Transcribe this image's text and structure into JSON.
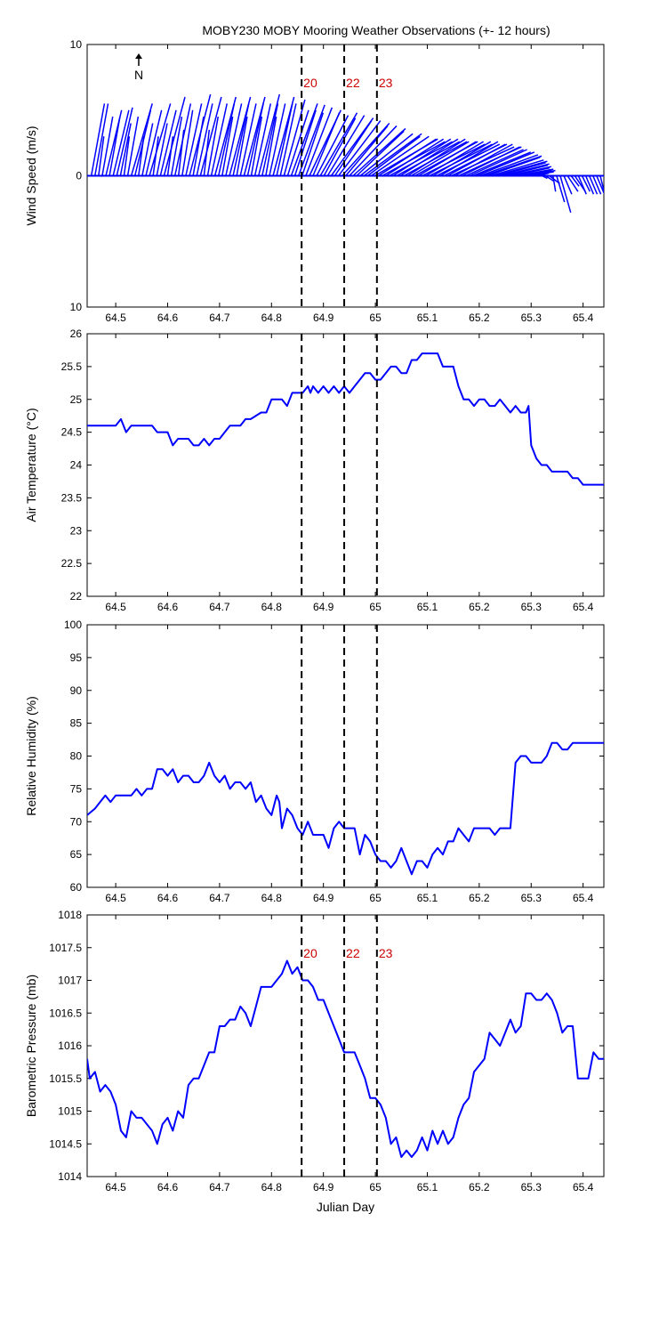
{
  "figure": {
    "title": "MOBY230 MOBY Mooring Weather Observations (+- 12 hours)",
    "line_color": "#0000ff",
    "marker_color": "#cc0000",
    "north_label": "N",
    "event_markers": [
      {
        "x": 64.858,
        "label": "20"
      },
      {
        "x": 64.94,
        "label": "22"
      },
      {
        "x": 65.003,
        "label": "23"
      }
    ]
  },
  "chart_data": [
    {
      "type": "quiver",
      "title": "",
      "xlabel": "",
      "ylabel": "Wind Speed (m/s)",
      "xlim": [
        64.445,
        65.44
      ],
      "ylim": [
        -10,
        10
      ],
      "xticks": [
        64.5,
        64.6,
        64.7,
        64.8,
        64.9,
        65,
        65.1,
        65.2,
        65.3,
        65.4
      ],
      "xtick_labels": [
        "64.5",
        "64.6",
        "64.7",
        "64.8",
        "64.9",
        "65",
        "65.1",
        "65.2",
        "65.3",
        "65.4"
      ],
      "yticks": [
        -10,
        0,
        10
      ],
      "ytick_labels": [
        "10",
        "0",
        "10"
      ],
      "show_markers": true,
      "show_marker_labels": true,
      "x": [
        64.453,
        64.46,
        64.467,
        64.474,
        64.481,
        64.488,
        64.495,
        64.502,
        64.509,
        64.516,
        64.523,
        64.53,
        64.537,
        64.544,
        64.551,
        64.558,
        64.565,
        64.572,
        64.579,
        64.586,
        64.593,
        64.6,
        64.607,
        64.614,
        64.621,
        64.628,
        64.635,
        64.642,
        64.649,
        64.656,
        64.663,
        64.67,
        64.677,
        64.684,
        64.691,
        64.698,
        64.705,
        64.712,
        64.719,
        64.726,
        64.733,
        64.74,
        64.747,
        64.754,
        64.761,
        64.768,
        64.775,
        64.782,
        64.789,
        64.796,
        64.803,
        64.81,
        64.817,
        64.824,
        64.831,
        64.838,
        64.845,
        64.852,
        64.859,
        64.866,
        64.873,
        64.88,
        64.887,
        64.894,
        64.901,
        64.908,
        64.915,
        64.922,
        64.929,
        64.936,
        64.943,
        64.95,
        64.957,
        64.964,
        64.971,
        64.978,
        64.985,
        64.992,
        64.999,
        65.006,
        65.013,
        65.02,
        65.027,
        65.034,
        65.041,
        65.048,
        65.055,
        65.062,
        65.069,
        65.076,
        65.083,
        65.09,
        65.097,
        65.104,
        65.111,
        65.118,
        65.125,
        65.132,
        65.139,
        65.146,
        65.153,
        65.16,
        65.167,
        65.174,
        65.181,
        65.188,
        65.195,
        65.202,
        65.209,
        65.216,
        65.223,
        65.23,
        65.237,
        65.244,
        65.251,
        65.258,
        65.265,
        65.272,
        65.279,
        65.286,
        65.293,
        65.3,
        65.307,
        65.314,
        65.321,
        65.328,
        65.335,
        65.342,
        65.349,
        65.356,
        65.363,
        65.37,
        65.377,
        65.384,
        65.391,
        65.398,
        65.405,
        65.412,
        65.419,
        65.426,
        65.433
      ],
      "u": [
        1.0,
        1.0,
        0.4,
        0.8,
        1.2,
        0.8,
        1.2,
        1.2,
        0.8,
        0.4,
        0.8,
        1.6,
        1.2,
        0.4,
        0.8,
        1.2,
        1.6,
        0.4,
        0.8,
        1.2,
        1.6,
        0.4,
        0.8,
        1.2,
        0.4,
        0.8,
        1.2,
        1.6,
        0.8,
        1.2,
        1.6,
        0.4,
        0.8,
        1.2,
        1.6,
        1.2,
        0.8,
        1.2,
        1.6,
        1.2,
        0.8,
        1.2,
        1.6,
        1.2,
        0.8,
        1.2,
        1.6,
        1.2,
        0.8,
        1.2,
        1.6,
        1.2,
        1.2,
        1.6,
        1.6,
        2.0,
        1.6,
        2.0,
        1.6,
        2.0,
        2.4,
        2.0,
        2.4,
        2.8,
        2.4,
        2.8,
        3.2,
        2.8,
        3.2,
        3.6,
        3.2,
        3.6,
        4.0,
        3.6,
        4.0,
        4.4,
        4.0,
        4.4,
        4.8,
        4.4,
        4.8,
        4.4,
        4.8,
        4.4,
        4.8,
        4.4,
        4.8,
        4.4,
        4.4,
        4.8,
        4.4,
        4.8,
        4.4,
        4.8,
        4.4,
        4.8,
        4.4,
        4.8,
        4.4,
        4.8,
        4.4,
        4.8,
        4.4,
        4.4,
        4.4,
        4.4,
        4.4,
        4.4,
        4.4,
        4.0,
        4.0,
        4.0,
        3.6,
        3.6,
        3.2,
        3.2,
        2.8,
        2.8,
        2.4,
        2.4,
        2.0,
        1.6,
        1.2,
        0.8,
        0.4,
        0.6,
        0.8,
        0.2,
        0.6,
        0.8,
        0.6,
        0.8,
        0.6,
        0.8,
        0.6,
        0.6,
        0.6,
        0.6,
        0.6,
        0.6,
        0.4
      ],
      "v": [
        5.5,
        5.5,
        3.0,
        4.5,
        5.0,
        4.5,
        5.0,
        5.2,
        4.0,
        3.0,
        4.5,
        5.5,
        5.0,
        3.0,
        4.0,
        5.0,
        5.5,
        3.0,
        4.0,
        5.0,
        6.0,
        3.0,
        4.5,
        5.5,
        3.5,
        5.0,
        5.5,
        6.2,
        4.5,
        5.5,
        6.0,
        3.5,
        4.5,
        5.5,
        6.0,
        5.5,
        4.5,
        5.5,
        6.0,
        5.5,
        4.5,
        5.5,
        6.0,
        5.5,
        4.5,
        5.5,
        6.2,
        5.5,
        4.5,
        5.5,
        6.0,
        5.5,
        5.5,
        5.8,
        5.0,
        5.5,
        5.0,
        5.4,
        4.8,
        5.2,
        5.0,
        4.8,
        4.6,
        4.8,
        4.4,
        4.6,
        4.4,
        4.2,
        4.2,
        4.0,
        3.8,
        3.8,
        3.6,
        3.4,
        3.2,
        3.2,
        3.0,
        3.0,
        2.8,
        2.8,
        2.6,
        2.8,
        2.6,
        2.8,
        2.6,
        2.8,
        2.6,
        2.8,
        2.6,
        2.6,
        2.6,
        2.4,
        2.6,
        2.4,
        2.6,
        2.4,
        2.6,
        2.4,
        2.4,
        2.2,
        2.4,
        2.2,
        2.2,
        2.0,
        2.0,
        1.8,
        1.8,
        1.6,
        1.5,
        1.4,
        1.2,
        1.1,
        1.0,
        0.9,
        0.8,
        0.7,
        0.6,
        0.5,
        0.4,
        0.4,
        0.3,
        0.3,
        0.3,
        0.2,
        -0.2,
        -0.4,
        -0.6,
        -1.2,
        -2.0,
        -2.8,
        -1.4,
        -1.2,
        -0.8,
        -1.2,
        -1.4,
        -1.2,
        -1.4,
        -1.4,
        -1.4,
        -1.4,
        -1.6,
        -1.4,
        -1.8
      ]
    },
    {
      "type": "line",
      "title": "",
      "xlabel": "",
      "ylabel": "Air Temperature (°C)",
      "xlim": [
        64.445,
        65.44
      ],
      "ylim": [
        22,
        26
      ],
      "xticks": [
        64.5,
        64.6,
        64.7,
        64.8,
        64.9,
        65,
        65.1,
        65.2,
        65.3,
        65.4
      ],
      "xtick_labels": [
        "64.5",
        "64.6",
        "64.7",
        "64.8",
        "64.9",
        "65",
        "65.1",
        "65.2",
        "65.3",
        "65.4"
      ],
      "yticks": [
        22,
        22.5,
        23,
        23.5,
        24,
        24.5,
        25,
        25.5,
        26
      ],
      "ytick_labels": [
        "22",
        "22.5",
        "23",
        "23.5",
        "24",
        "24.5",
        "25",
        "25.5",
        "26"
      ],
      "show_markers": true,
      "show_marker_labels": false,
      "x": [
        64.445,
        64.46,
        64.48,
        64.5,
        64.51,
        64.52,
        64.53,
        64.55,
        64.57,
        64.58,
        64.6,
        64.61,
        64.62,
        64.64,
        64.65,
        64.66,
        64.67,
        64.68,
        64.69,
        64.7,
        64.71,
        64.72,
        64.74,
        64.75,
        64.76,
        64.78,
        64.79,
        64.8,
        64.81,
        64.82,
        64.83,
        64.84,
        64.85,
        64.86,
        64.87,
        64.875,
        64.88,
        64.89,
        64.9,
        64.91,
        64.92,
        64.93,
        64.94,
        64.95,
        64.96,
        64.97,
        64.98,
        64.99,
        65.0,
        65.01,
        65.02,
        65.03,
        65.04,
        65.05,
        65.06,
        65.07,
        65.08,
        65.09,
        65.1,
        65.11,
        65.12,
        65.13,
        65.14,
        65.15,
        65.16,
        65.17,
        65.18,
        65.19,
        65.2,
        65.21,
        65.22,
        65.23,
        65.24,
        65.25,
        65.26,
        65.27,
        65.28,
        65.29,
        65.295,
        65.3,
        65.31,
        65.32,
        65.33,
        65.34,
        65.35,
        65.36,
        65.37,
        65.38,
        65.39,
        65.4,
        65.41,
        65.42,
        65.43,
        65.44
      ],
      "y": [
        24.6,
        24.6,
        24.6,
        24.6,
        24.7,
        24.5,
        24.6,
        24.6,
        24.6,
        24.5,
        24.5,
        24.3,
        24.4,
        24.4,
        24.3,
        24.3,
        24.4,
        24.3,
        24.4,
        24.4,
        24.5,
        24.6,
        24.6,
        24.7,
        24.7,
        24.8,
        24.8,
        25.0,
        25.0,
        25.0,
        24.9,
        25.1,
        25.1,
        25.1,
        25.2,
        25.1,
        25.2,
        25.1,
        25.2,
        25.1,
        25.2,
        25.1,
        25.2,
        25.1,
        25.2,
        25.3,
        25.4,
        25.4,
        25.3,
        25.3,
        25.4,
        25.5,
        25.5,
        25.4,
        25.4,
        25.6,
        25.6,
        25.7,
        25.7,
        25.7,
        25.7,
        25.5,
        25.5,
        25.5,
        25.2,
        25.0,
        25.0,
        24.9,
        25.0,
        25.0,
        24.9,
        24.9,
        25.0,
        24.9,
        24.8,
        24.9,
        24.8,
        24.8,
        24.9,
        24.3,
        24.1,
        24.0,
        24.0,
        23.9,
        23.9,
        23.9,
        23.9,
        23.8,
        23.8,
        23.7,
        23.7,
        23.7,
        23.7,
        23.7
      ]
    },
    {
      "type": "line",
      "title": "",
      "xlabel": "",
      "ylabel": "Relative Humidity (%)",
      "xlim": [
        64.445,
        65.44
      ],
      "ylim": [
        60,
        100
      ],
      "xticks": [
        64.5,
        64.6,
        64.7,
        64.8,
        64.9,
        65,
        65.1,
        65.2,
        65.3,
        65.4
      ],
      "xtick_labels": [
        "64.5",
        "64.6",
        "64.7",
        "64.8",
        "64.9",
        "65",
        "65.1",
        "65.2",
        "65.3",
        "65.4"
      ],
      "yticks": [
        60,
        65,
        70,
        75,
        80,
        85,
        90,
        95,
        100
      ],
      "ytick_labels": [
        "60",
        "65",
        "70",
        "75",
        "80",
        "85",
        "90",
        "95",
        "100"
      ],
      "show_markers": true,
      "show_marker_labels": false,
      "x": [
        64.445,
        64.46,
        64.47,
        64.48,
        64.49,
        64.5,
        64.51,
        64.52,
        64.53,
        64.54,
        64.55,
        64.56,
        64.57,
        64.58,
        64.59,
        64.6,
        64.61,
        64.62,
        64.63,
        64.64,
        64.65,
        64.66,
        64.67,
        64.68,
        64.69,
        64.7,
        64.71,
        64.72,
        64.73,
        64.74,
        64.75,
        64.76,
        64.77,
        64.78,
        64.79,
        64.8,
        64.81,
        64.815,
        64.82,
        64.83,
        64.84,
        64.85,
        64.86,
        64.87,
        64.88,
        64.89,
        64.9,
        64.91,
        64.92,
        64.93,
        64.94,
        64.95,
        64.96,
        64.97,
        64.98,
        64.99,
        65.0,
        65.01,
        65.02,
        65.03,
        65.04,
        65.05,
        65.06,
        65.07,
        65.08,
        65.09,
        65.1,
        65.11,
        65.12,
        65.13,
        65.14,
        65.15,
        65.16,
        65.17,
        65.18,
        65.19,
        65.2,
        65.21,
        65.22,
        65.23,
        65.24,
        65.25,
        65.26,
        65.27,
        65.28,
        65.29,
        65.3,
        65.31,
        65.32,
        65.33,
        65.34,
        65.35,
        65.36,
        65.37,
        65.38,
        65.39,
        65.4,
        65.41,
        65.42,
        65.43,
        65.44
      ],
      "y": [
        71,
        72,
        73,
        74,
        73,
        74,
        74,
        74,
        74,
        75,
        74,
        75,
        75,
        78,
        78,
        77,
        78,
        76,
        77,
        77,
        76,
        76,
        77,
        79,
        77,
        76,
        77,
        75,
        76,
        76,
        75,
        76,
        73,
        74,
        72,
        71,
        74,
        73,
        69,
        72,
        71,
        69,
        68,
        70,
        68,
        68,
        68,
        66,
        69,
        70,
        69,
        69,
        69,
        65,
        68,
        67,
        65,
        64,
        64,
        63,
        64,
        66,
        64,
        62,
        64,
        64,
        63,
        65,
        66,
        65,
        67,
        67,
        69,
        68,
        67,
        69,
        69,
        69,
        69,
        68,
        69,
        69,
        69,
        79,
        80,
        80,
        79,
        79,
        79,
        80,
        82,
        82,
        81,
        81,
        82,
        82,
        82,
        82,
        82,
        82,
        82
      ],
      "x_note": ""
    },
    {
      "type": "line",
      "title": "",
      "xlabel": "Julian Day",
      "ylabel": "Barometric Pressure (mb)",
      "xlim": [
        64.445,
        65.44
      ],
      "ylim": [
        1014,
        1018
      ],
      "xticks": [
        64.5,
        64.6,
        64.7,
        64.8,
        64.9,
        65,
        65.1,
        65.2,
        65.3,
        65.4
      ],
      "xtick_labels": [
        "64.5",
        "64.6",
        "64.7",
        "64.8",
        "64.9",
        "65",
        "65.1",
        "65.2",
        "65.3",
        "65.4"
      ],
      "yticks": [
        1014,
        1014.5,
        1015,
        1015.5,
        1016,
        1016.5,
        1017,
        1017.5,
        1018
      ],
      "ytick_labels": [
        "1014",
        "1014.5",
        "1015",
        "1015.5",
        "1016",
        "1016.5",
        "1017",
        "1017.5",
        "1018"
      ],
      "show_markers": true,
      "show_marker_labels": true,
      "x": [
        64.445,
        64.45,
        64.46,
        64.47,
        64.48,
        64.49,
        64.5,
        64.51,
        64.52,
        64.53,
        64.54,
        64.55,
        64.56,
        64.57,
        64.58,
        64.59,
        64.6,
        64.61,
        64.62,
        64.63,
        64.64,
        64.65,
        64.66,
        64.67,
        64.68,
        64.69,
        64.7,
        64.71,
        64.72,
        64.73,
        64.74,
        64.75,
        64.76,
        64.77,
        64.78,
        64.79,
        64.8,
        64.81,
        64.82,
        64.83,
        64.84,
        64.85,
        64.86,
        64.87,
        64.88,
        64.89,
        64.9,
        64.91,
        64.92,
        64.93,
        64.94,
        64.95,
        64.96,
        64.97,
        64.98,
        64.99,
        65.0,
        65.01,
        65.02,
        65.03,
        65.04,
        65.05,
        65.06,
        65.07,
        65.08,
        65.09,
        65.1,
        65.11,
        65.12,
        65.13,
        65.14,
        65.15,
        65.16,
        65.17,
        65.18,
        65.19,
        65.2,
        65.21,
        65.22,
        65.23,
        65.24,
        65.25,
        65.26,
        65.27,
        65.28,
        65.29,
        65.3,
        65.31,
        65.32,
        65.33,
        65.34,
        65.35,
        65.36,
        65.37,
        65.38,
        65.39,
        65.4,
        65.41,
        65.42,
        65.43,
        65.44
      ],
      "y": [
        1015.8,
        1015.5,
        1015.6,
        1015.3,
        1015.4,
        1015.3,
        1015.1,
        1014.7,
        1014.6,
        1015.0,
        1014.9,
        1014.9,
        1014.8,
        1014.7,
        1014.5,
        1014.8,
        1014.9,
        1014.7,
        1015.0,
        1014.9,
        1015.4,
        1015.5,
        1015.5,
        1015.7,
        1015.9,
        1015.9,
        1016.3,
        1016.3,
        1016.4,
        1016.4,
        1016.6,
        1016.5,
        1016.3,
        1016.6,
        1016.9,
        1016.9,
        1016.9,
        1017.0,
        1017.1,
        1017.3,
        1017.1,
        1017.2,
        1017.0,
        1017.0,
        1016.9,
        1016.7,
        1016.7,
        1016.5,
        1016.3,
        1016.1,
        1015.9,
        1015.9,
        1015.9,
        1015.7,
        1015.5,
        1015.2,
        1015.2,
        1015.1,
        1014.9,
        1014.5,
        1014.6,
        1014.3,
        1014.4,
        1014.3,
        1014.4,
        1014.6,
        1014.4,
        1014.7,
        1014.5,
        1014.7,
        1014.5,
        1014.6,
        1014.9,
        1015.1,
        1015.2,
        1015.6,
        1015.7,
        1015.8,
        1016.2,
        1016.1,
        1016.0,
        1016.2,
        1016.4,
        1016.2,
        1016.3,
        1016.8,
        1016.8,
        1016.7,
        1016.7,
        1016.8,
        1016.7,
        1016.5,
        1016.2,
        1016.3,
        1016.3,
        1015.5,
        1015.5,
        1015.5,
        1015.9,
        1015.8,
        1015.8
      ]
    }
  ]
}
